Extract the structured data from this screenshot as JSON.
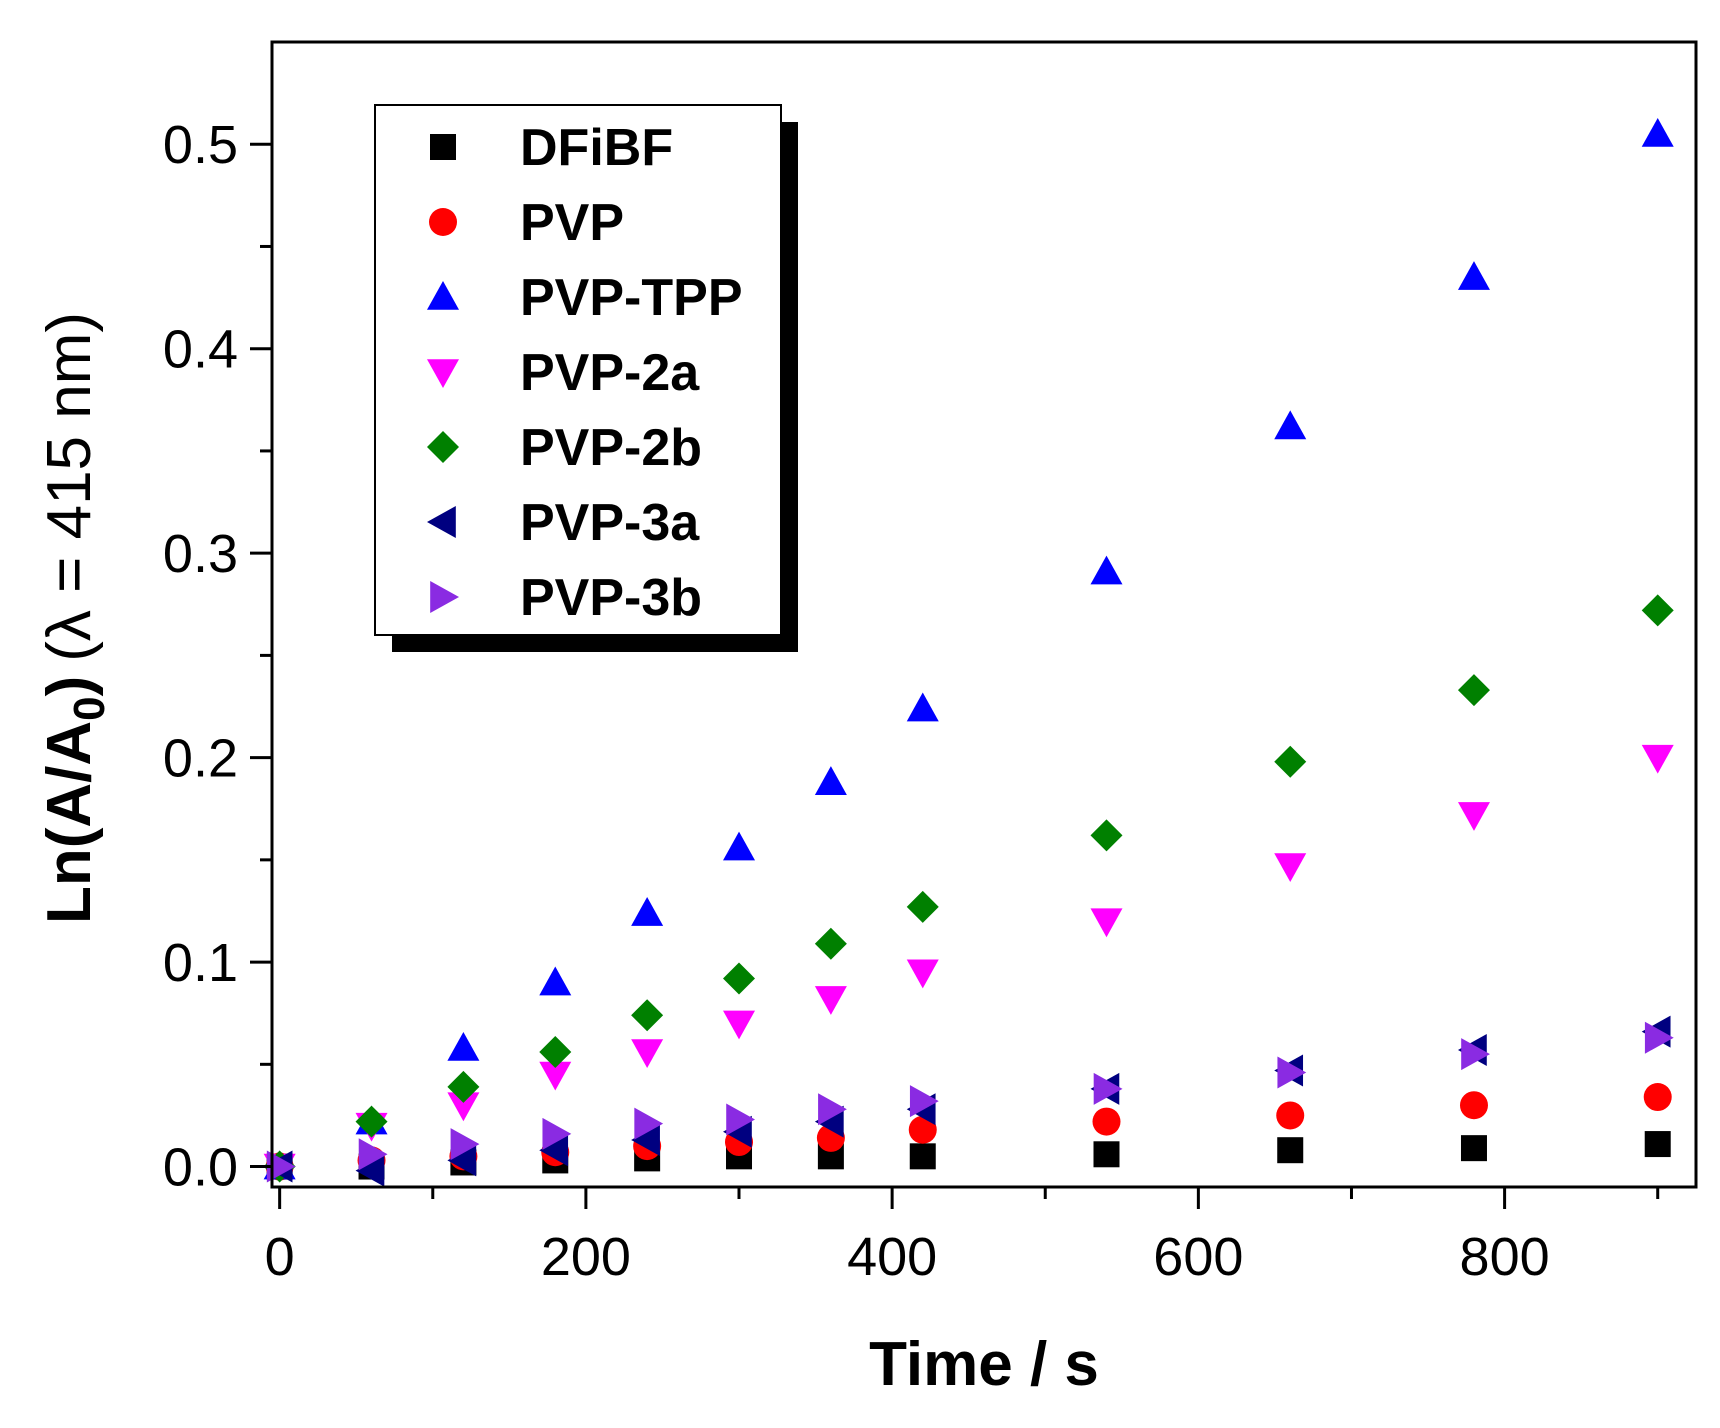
{
  "chart_data": {
    "type": "scatter",
    "title": "",
    "xlabel": "Time / s",
    "ylabel_main": "Ln(A/A",
    "ylabel_sub": "0",
    "ylabel_close": ")",
    "ylabel_paren": "(λ = 415 nm)",
    "xlim": [
      -5,
      925
    ],
    "ylim": [
      -0.01,
      0.55
    ],
    "x_ticks": [
      0,
      200,
      400,
      600,
      800
    ],
    "x_tick_labels": [
      "0",
      "200",
      "400",
      "600",
      "800"
    ],
    "x_minor_ticks": [
      100,
      300,
      500,
      700,
      900
    ],
    "y_ticks": [
      0.0,
      0.1,
      0.2,
      0.3,
      0.4,
      0.5
    ],
    "y_tick_labels": [
      "0.0",
      "0.1",
      "0.2",
      "0.3",
      "0.4",
      "0.5"
    ],
    "y_minor_ticks": [
      0.05,
      0.15,
      0.25,
      0.35,
      0.45
    ],
    "grid": false,
    "legend_position": "top-left",
    "x": [
      0,
      60,
      120,
      180,
      240,
      300,
      360,
      420,
      540,
      660,
      780,
      900
    ],
    "series": [
      {
        "name": "DFiBF",
        "marker": "square",
        "color": "#000000",
        "values": [
          0.0,
          0.0,
          0.002,
          0.003,
          0.004,
          0.005,
          0.005,
          0.005,
          0.006,
          0.008,
          0.009,
          0.011
        ]
      },
      {
        "name": "PVP",
        "marker": "circle",
        "color": "#ff0000",
        "values": [
          0.0,
          0.003,
          0.005,
          0.007,
          0.01,
          0.012,
          0.014,
          0.018,
          0.022,
          0.025,
          0.03,
          0.034
        ]
      },
      {
        "name": "PVP-TPP",
        "marker": "triangle-up",
        "color": "#0000ff",
        "values": [
          0.0,
          0.022,
          0.058,
          0.09,
          0.124,
          0.156,
          0.188,
          0.224,
          0.291,
          0.362,
          0.435,
          0.505
        ]
      },
      {
        "name": "PVP-2a",
        "marker": "triangle-down",
        "color": "#ff00ff",
        "values": [
          0.0,
          0.02,
          0.03,
          0.045,
          0.056,
          0.07,
          0.082,
          0.095,
          0.12,
          0.147,
          0.172,
          0.2
        ]
      },
      {
        "name": "PVP-2b",
        "marker": "diamond",
        "color": "#008000",
        "values": [
          0.0,
          0.022,
          0.039,
          0.056,
          0.074,
          0.092,
          0.109,
          0.127,
          0.162,
          0.198,
          0.233,
          0.272
        ]
      },
      {
        "name": "PVP-3a",
        "marker": "triangle-left",
        "color": "#000080",
        "values": [
          0.0,
          -0.002,
          0.003,
          0.008,
          0.013,
          0.017,
          0.022,
          0.028,
          0.038,
          0.047,
          0.057,
          0.066
        ]
      },
      {
        "name": "PVP-3b",
        "marker": "triangle-right",
        "color": "#8a2be2",
        "values": [
          0.0,
          0.006,
          0.011,
          0.016,
          0.021,
          0.023,
          0.028,
          0.032,
          0.038,
          0.046,
          0.055,
          0.063
        ]
      }
    ]
  }
}
